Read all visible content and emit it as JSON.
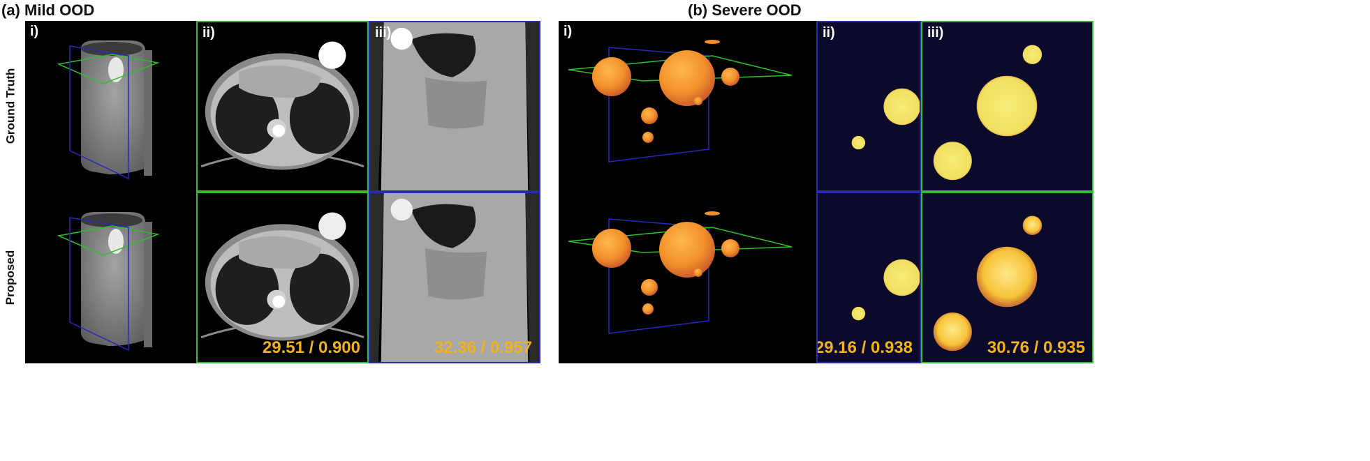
{
  "sections": {
    "a": {
      "title": "(a) Mild OOD"
    },
    "b": {
      "title": "(b) Severe OOD"
    }
  },
  "rows": {
    "top": "Ground Truth",
    "bottom": "Proposed"
  },
  "panel_labels": {
    "i": "i)",
    "ii": "ii)",
    "iii": "iii)"
  },
  "metrics": {
    "mild_axial": "29.51 / 0.900",
    "mild_coronal": "32.36 / 0.957",
    "severe_slice_ii": "29.16 / 0.938",
    "severe_slice_iii": "30.76 / 0.935"
  },
  "colors": {
    "plane_axial": "#2fbf2f",
    "plane_coronal": "#2a2ab8",
    "metric_text": "#f2b31a",
    "sphere": "#f0902c",
    "slice_background": "#0c0a2a"
  }
}
